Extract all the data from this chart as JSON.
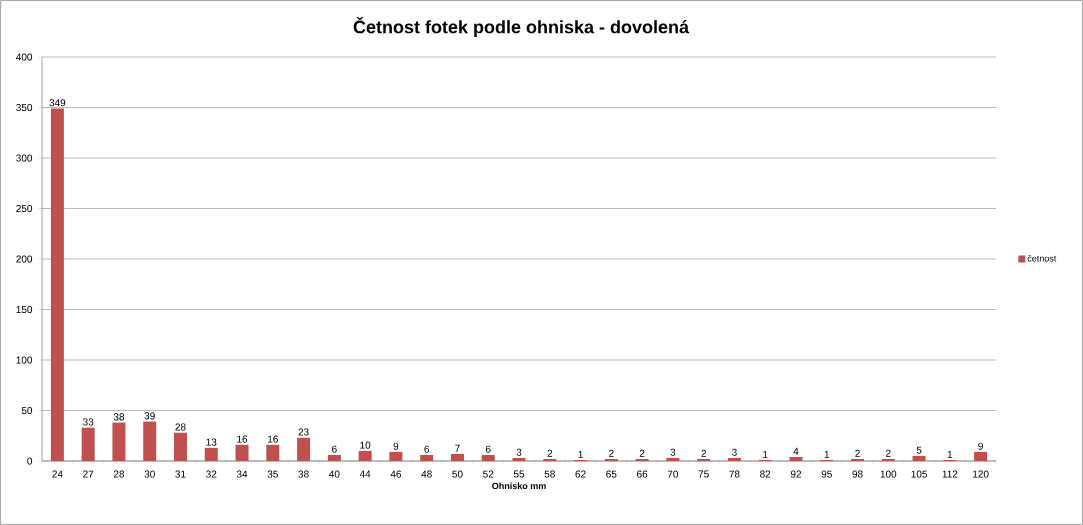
{
  "chart_data": {
    "type": "bar",
    "title": "Četnost fotek podle ohniska - dovolená",
    "xlabel": "Ohnisko mm",
    "categories": [
      "24",
      "27",
      "28",
      "30",
      "31",
      "32",
      "34",
      "35",
      "38",
      "40",
      "44",
      "46",
      "48",
      "50",
      "52",
      "55",
      "58",
      "62",
      "65",
      "66",
      "70",
      "75",
      "78",
      "82",
      "92",
      "95",
      "98",
      "100",
      "105",
      "112",
      "120"
    ],
    "series": [
      {
        "name": "četnost",
        "color": "#c0504d",
        "values": [
          349,
          33,
          38,
          39,
          28,
          13,
          16,
          16,
          23,
          6,
          10,
          9,
          6,
          7,
          6,
          3,
          2,
          1,
          2,
          2,
          3,
          2,
          3,
          1,
          4,
          1,
          2,
          2,
          5,
          1,
          9
        ]
      }
    ],
    "ylim": [
      0,
      400
    ],
    "yticks": [
      0,
      50,
      100,
      150,
      200,
      250,
      300,
      350,
      400
    ],
    "grid": "y",
    "legend": "right",
    "data_labels": true
  }
}
